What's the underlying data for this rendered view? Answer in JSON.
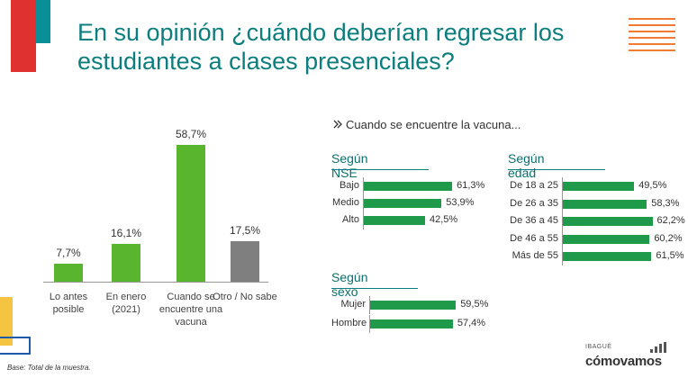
{
  "title": "En su opinión ¿cuándo deberían regresar los estudiantes a clases presenciales?",
  "subtitle": "Cuando se encuentre la vacuna...",
  "footnote": "Base: Total de la muestra.",
  "brand": {
    "city": "IBAGUÉ",
    "name": "cómovamos"
  },
  "colors": {
    "accent": "#0c7e7e",
    "bar_green": "#1e9a4a",
    "main_green": "#59b52e",
    "gray": "#7f7f7f"
  },
  "icons": {
    "subtitle": "double-chevron-icon"
  },
  "chart_data": [
    {
      "type": "bar",
      "categories": [
        "Lo antes posible",
        "En enero (2021)",
        "Cuando se encuentre una vacuna",
        "Otro / No sabe"
      ],
      "values": [
        7.7,
        16.1,
        58.7,
        17.5
      ],
      "value_labels": [
        "7,7%",
        "16,1%",
        "58,7%",
        "17,5%"
      ],
      "colors": [
        "#59b52e",
        "#59b52e",
        "#59b52e",
        "#7f7f7f"
      ],
      "title": "",
      "xlabel": "",
      "ylabel": "",
      "ylim": [
        0,
        60
      ]
    },
    {
      "type": "bar",
      "orientation": "horizontal",
      "title": "Según NSE",
      "categories": [
        "Bajo",
        "Medio",
        "Alto"
      ],
      "values": [
        61.3,
        53.9,
        42.5
      ],
      "value_labels": [
        "61,3%",
        "53,9%",
        "42,5%"
      ]
    },
    {
      "type": "bar",
      "orientation": "horizontal",
      "title": "Según edad",
      "categories": [
        "De 18 a 25",
        "De 26 a 35",
        "De 36 a 45",
        "De 46 a 55",
        "Más de 55"
      ],
      "values": [
        49.5,
        58.3,
        62.2,
        60.2,
        61.5
      ],
      "value_labels": [
        "49,5%",
        "58,3%",
        "62,2%",
        "60,2%",
        "61,5%"
      ]
    },
    {
      "type": "bar",
      "orientation": "horizontal",
      "title": "Según sexo",
      "categories": [
        "Mujer",
        "Hombre"
      ],
      "values": [
        59.5,
        57.4
      ],
      "value_labels": [
        "59,5%",
        "57,4%"
      ]
    }
  ]
}
